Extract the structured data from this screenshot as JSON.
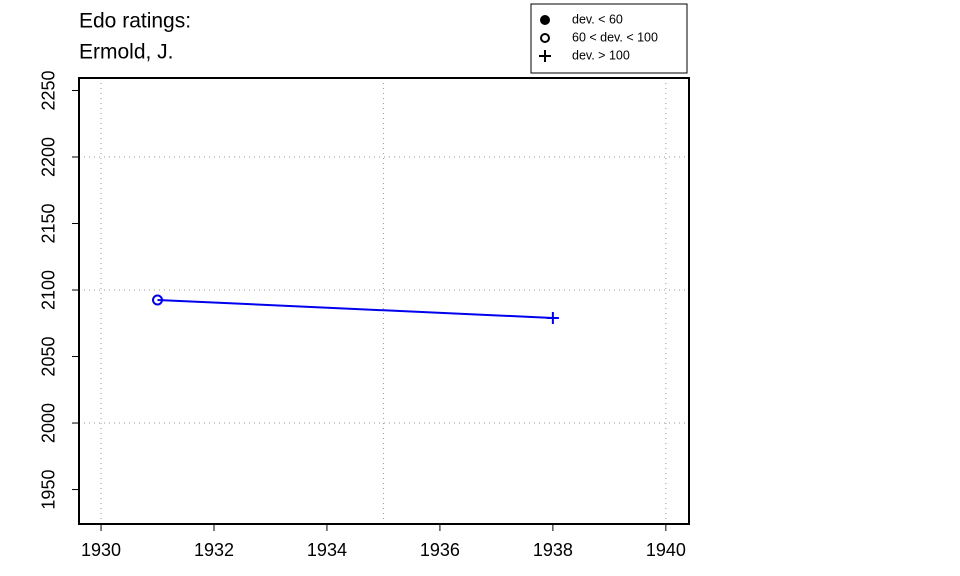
{
  "chart_data": {
    "type": "line",
    "title": [
      "Edo ratings:",
      "Ermold, J."
    ],
    "x": [
      1931,
      1938
    ],
    "series": [
      {
        "color": "#0000ee",
        "values": [
          2092.5,
          2079
        ],
        "markers": [
          "open-circle",
          "plus"
        ]
      }
    ],
    "legend": [
      {
        "label": "dev. < 60",
        "marker": "filled-circle"
      },
      {
        "label": "60 < dev. < 100",
        "marker": "open-circle"
      },
      {
        "label": "dev. > 100",
        "marker": "plus"
      }
    ],
    "legend_position": "top-right",
    "xlim": [
      1929.61,
      1940.41
    ],
    "xticks": [
      1930,
      1932,
      1934,
      1936,
      1938,
      1940
    ],
    "ylim": [
      1924.1,
      2259.4
    ],
    "yticks": [
      1950,
      2000,
      2050,
      2100,
      2150,
      2200,
      2250
    ],
    "xgrid": [
      1930,
      1935,
      1940
    ],
    "ygrid": [
      2000,
      2100,
      2200
    ],
    "grid": true
  }
}
